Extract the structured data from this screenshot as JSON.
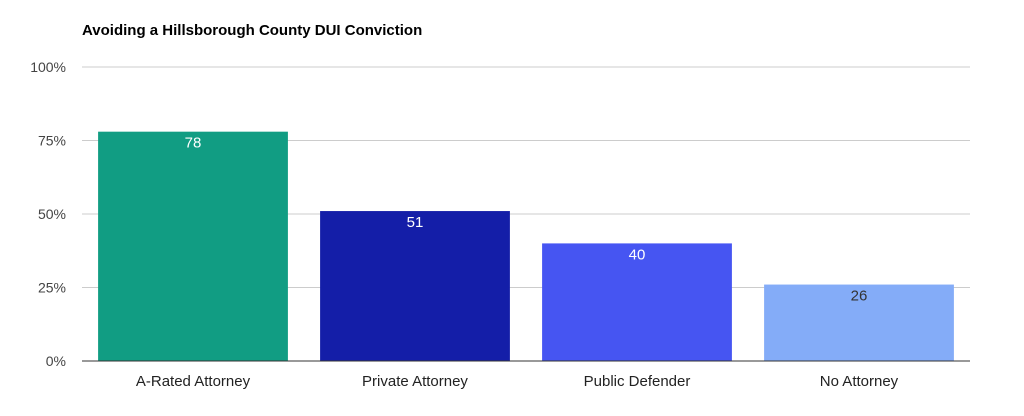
{
  "chart_data": {
    "type": "bar",
    "title": "Avoiding a Hillsborough County DUI Conviction",
    "xlabel": "",
    "ylabel": "",
    "categories": [
      "A-Rated Attorney",
      "Private Attorney",
      "Public Defender",
      "No Attorney"
    ],
    "values": [
      78,
      51,
      40,
      26
    ],
    "data_labels": [
      "78",
      "51",
      "40",
      "26"
    ],
    "colors": [
      "#119d83",
      "#141ea8",
      "#4655f2",
      "#84acf8"
    ],
    "label_colors": [
      "#ffffff",
      "#ffffff",
      "#ffffff",
      "#333333"
    ],
    "ylim": [
      0,
      100
    ],
    "yticks": [
      0,
      25,
      50,
      75,
      100
    ],
    "ytick_labels": [
      "0%",
      "25%",
      "50%",
      "75%",
      "100%"
    ],
    "grid": true,
    "legend": "none"
  }
}
